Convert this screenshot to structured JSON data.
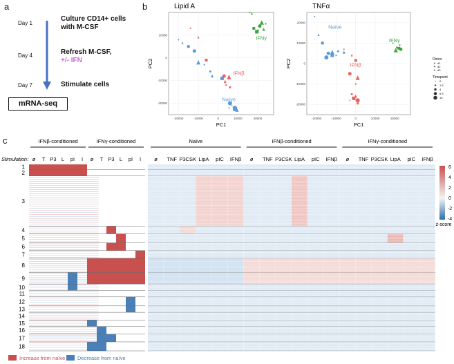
{
  "panel_a": {
    "letter": "a",
    "steps": [
      {
        "day": "Day 1",
        "text": "Culture CD14+ cells with M-CSF"
      },
      {
        "day": "Day 4",
        "text": "Refresh M-CSF,",
        "extra": "+/- IFN"
      },
      {
        "day": "Day 7",
        "text": "Stimulate cells"
      }
    ],
    "output_box": "mRNA-seq",
    "colors": {
      "arrow": "#4472c4",
      "ifn_text": "#c86ad6"
    }
  },
  "panel_b": {
    "letter": "b",
    "chart_data": [
      {
        "type": "scatter",
        "title": "Lipid A",
        "xlabel": "PC1",
        "ylabel": "PC2",
        "xlim": [
          -25000,
          28000
        ],
        "ylim": [
          -25000,
          20000
        ],
        "xticks": [
          -20000,
          -10000,
          0,
          10000,
          20000
        ],
        "yticks": [
          -20000,
          -10000,
          0,
          10000
        ],
        "annotations": [
          {
            "text": "IFNγ",
            "x": 19000,
            "y": 8000,
            "color": "#3aa63a"
          },
          {
            "text": "IFNβ",
            "x": 7500,
            "y": -7500,
            "color": "#e8625c"
          },
          {
            "text": "Naïve",
            "x": 2000,
            "y": -19000,
            "color": "#5b9bd5"
          }
        ],
        "series": [
          {
            "name": "Naïve",
            "color": "#5b9bd5",
            "points": [
              [
                -20000,
                8000
              ],
              [
                -18000,
                6500
              ],
              [
                -15000,
                5000
              ],
              [
                -12000,
                3000
              ],
              [
                -10000,
                -2000
              ],
              [
                -7000,
                -3000
              ],
              [
                -4000,
                -6000
              ],
              [
                -3000,
                -8000
              ],
              [
                2000,
                -9000
              ],
              [
                6000,
                -20000
              ],
              [
                7000,
                -21000
              ],
              [
                8500,
                -21500
              ],
              [
                8000,
                -22000
              ],
              [
                9500,
                -23000
              ],
              [
                8500,
                -22500
              ],
              [
                5500,
                -22000
              ]
            ]
          },
          {
            "name": "IFNβ",
            "color": "#e8625c",
            "points": [
              [
                -14000,
                13000
              ],
              [
                -10000,
                9000
              ],
              [
                -6000,
                -1000
              ],
              [
                3000,
                -8000
              ],
              [
                5500,
                -8500
              ],
              [
                4000,
                -12000
              ],
              [
                6000,
                -13000
              ],
              [
                3500,
                -10500
              ]
            ]
          },
          {
            "name": "IFNγ",
            "color": "#3aa63a",
            "points": [
              [
                16000,
                20000
              ],
              [
                17000,
                19500
              ],
              [
                18000,
                13000
              ],
              [
                21000,
                14000
              ],
              [
                22000,
                15500
              ],
              [
                24000,
                15000
              ],
              [
                20000,
                12000
              ],
              [
                23000,
                12500
              ],
              [
                19500,
                11500
              ]
            ]
          }
        ]
      },
      {
        "type": "scatter",
        "title": "TNFα",
        "xlabel": "PC1",
        "ylabel": "PC2",
        "xlim": [
          -25000,
          28000
        ],
        "ylim": [
          -25000,
          25000
        ],
        "xticks": [
          -20000,
          -10000,
          0,
          10000,
          20000
        ],
        "yticks": [
          -20000,
          -10000,
          0,
          10000,
          20000
        ],
        "annotations": [
          {
            "text": "Naïve",
            "x": -14000,
            "y": 17000,
            "color": "#5b9bd5"
          },
          {
            "text": "IFNγ",
            "x": 17000,
            "y": 10500,
            "color": "#3aa63a"
          },
          {
            "text": "IFNβ",
            "x": -3000,
            "y": -1500,
            "color": "#e8625c"
          }
        ],
        "series": [
          {
            "name": "Naïve",
            "color": "#5b9bd5",
            "points": [
              [
                -21000,
                23000
              ],
              [
                -19000,
                14000
              ],
              [
                -17000,
                10000
              ],
              [
                -14000,
                5000
              ],
              [
                -12000,
                5500
              ],
              [
                -10000,
                4000
              ],
              [
                -9000,
                6000
              ],
              [
                -6000,
                5500
              ],
              [
                -12000,
                4000
              ],
              [
                -15000,
                3000
              ]
            ]
          },
          {
            "name": "IFNβ",
            "color": "#e8625c",
            "points": [
              [
                -6000,
                7000
              ],
              [
                -2000,
                4000
              ],
              [
                0,
                1500
              ],
              [
                -3000,
                -5000
              ],
              [
                1000,
                -7000
              ],
              [
                0,
                -10000
              ],
              [
                -2000,
                -15000
              ],
              [
                0,
                -16000
              ],
              [
                -1000,
                -17000
              ],
              [
                1000,
                -18000
              ],
              [
                -3000,
                -18000
              ],
              [
                1000,
                -19500
              ]
            ]
          },
          {
            "name": "IFNγ",
            "color": "#3aa63a",
            "points": [
              [
                19000,
                10000
              ],
              [
                21000,
                8000
              ],
              [
                22000,
                7500
              ],
              [
                23000,
                7000
              ],
              [
                20500,
                6500
              ],
              [
                22500,
                9000
              ]
            ]
          }
        ]
      }
    ],
    "legend": {
      "donor_title": "Donor",
      "donors": [
        "d1",
        "d2",
        "d3"
      ],
      "timepoint_title": "Timepoint",
      "timepoints": [
        "0",
        "1.5",
        "4",
        "6.5",
        "10"
      ]
    }
  },
  "panel_c": {
    "letter": "c",
    "stimulation_label": "Stimulation:",
    "left_groups": [
      {
        "name": "IFNβ-conditioned",
        "cols": [
          "ø",
          "T",
          "P3",
          "L",
          "pI",
          "I"
        ]
      },
      {
        "name": "IFNγ-conditioned",
        "cols": [
          "ø",
          "T",
          "P3",
          "L",
          "pI",
          "I"
        ]
      }
    ],
    "right_groups": [
      {
        "name": "Naïve",
        "cols": [
          "ø",
          "TNF",
          "P3CSK",
          "LipA",
          "pIC",
          "IFNβ"
        ]
      },
      {
        "name": "IFNβ-conditioned",
        "cols": [
          "ø",
          "TNF",
          "P3CSK",
          "LipA",
          "pIC",
          "IFNβ"
        ]
      },
      {
        "name": "IFNγ-conditioned",
        "cols": [
          "ø",
          "TNF",
          "P3CSK",
          "LipA",
          "pIC",
          "IFNβ"
        ]
      }
    ],
    "clusters": [
      "1",
      "2",
      "3",
      "4",
      "5",
      "6",
      "7",
      "8",
      "9",
      "10",
      "11",
      "12",
      "13",
      "14",
      "15",
      "16",
      "17",
      "18"
    ],
    "colorbar": {
      "ticks": [
        "6",
        "4",
        "2",
        "0",
        "-2",
        "-4"
      ],
      "label": "z-score",
      "high": "#c8504f",
      "mid": "#f4f4f4",
      "low": "#2c6fa6"
    },
    "legend": [
      {
        "label": "Increase from naïve",
        "color": "#c8504f"
      },
      {
        "label": "Decrease from naïve",
        "color": "#4a7fb8"
      }
    ]
  }
}
